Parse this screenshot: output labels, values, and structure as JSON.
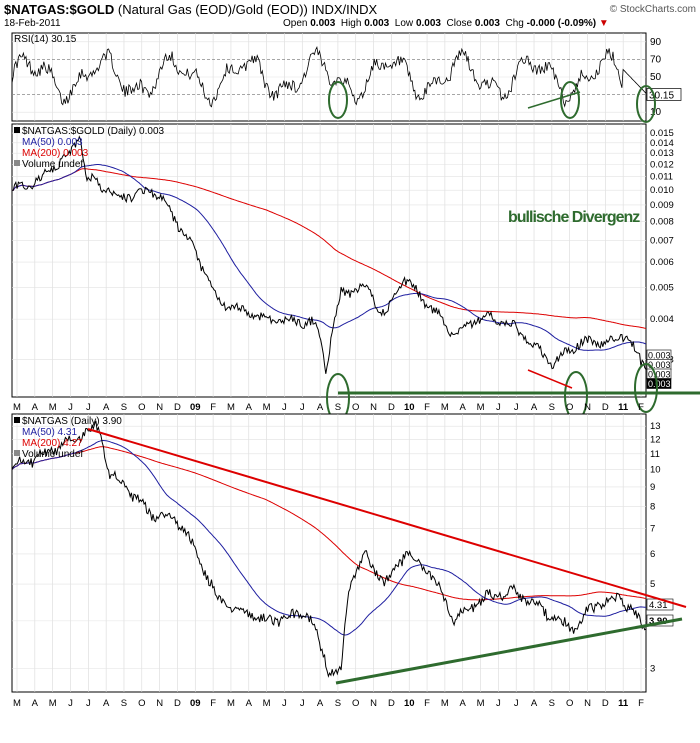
{
  "header": {
    "symbol": "$NATGAS:$GOLD",
    "description": "(Natural Gas (EOD)/Gold (EOD))",
    "exchange": "INDX/INDX",
    "date": "18-Feb-2011",
    "brand": "© StockCharts.com",
    "open_label": "Open",
    "open": "0.003",
    "high_label": "High",
    "high": "0.003",
    "low_label": "Low",
    "low": "0.003",
    "close_label": "Close",
    "close": "0.003",
    "chg_label": "Chg",
    "chg": "-0.000 (-0.09%)",
    "chg_arrow": "▼"
  },
  "annotation_text": "bullische Divergenz",
  "chart_data": [
    {
      "type": "line",
      "panel": "rsi",
      "legend": "RSI(14) 30.15",
      "last_value": "30.15",
      "ylim": [
        0,
        100
      ],
      "y_ticks": [
        "90",
        "70",
        "50",
        "30",
        "10"
      ],
      "reference_lines": [
        70,
        30
      ],
      "colors": {
        "rsi": "#000000",
        "reference": "#888888",
        "annotation": "#2e6b2e"
      }
    },
    {
      "type": "line",
      "panel": "ratio",
      "scale": "log",
      "legend": {
        "main": "$NATGAS:$GOLD (Daily) 0.003",
        "ma50": "MA(50) 0.003",
        "ma200": "MA(200) 0.003",
        "volume": "Volume undef"
      },
      "ylim": [
        0.0023,
        0.016
      ],
      "y_ticks": [
        "0.015",
        "0.014",
        "0.013",
        "0.012",
        "0.011",
        "0.010",
        "0.009",
        "0.008",
        "0.007",
        "0.006",
        "0.005",
        "0.004",
        "0.003"
      ],
      "tags": [
        "0.003",
        "0.003",
        "0.003",
        "0.003"
      ],
      "x_labels": [
        "M",
        "A",
        "M",
        "J",
        "J",
        "A",
        "S",
        "O",
        "N",
        "D",
        "09",
        "F",
        "M",
        "A",
        "M",
        "J",
        "J",
        "A",
        "S",
        "O",
        "N",
        "D",
        "10",
        "F",
        "M",
        "A",
        "M",
        "J",
        "J",
        "A",
        "S",
        "O",
        "N",
        "D",
        "11",
        "F"
      ],
      "colors": {
        "price": "#000000",
        "ma50": "#1f1fa0",
        "ma200": "#dd0000",
        "support": "#2e6b2e"
      }
    },
    {
      "type": "line",
      "panel": "natgas",
      "scale": "log",
      "legend": {
        "main": "$NATGAS (Daily) 3.90",
        "ma50": "MA(50) 4.31",
        "ma200": "MA(200) 4.27",
        "volume": "Volume undef"
      },
      "ylim": [
        2.6,
        14
      ],
      "y_ticks": [
        "13",
        "12",
        "11",
        "10",
        "9",
        "8",
        "7",
        "6",
        "5",
        "4",
        "3"
      ],
      "tags": [
        "4.31",
        "3.90"
      ],
      "x_labels": [
        "M",
        "A",
        "M",
        "J",
        "J",
        "A",
        "S",
        "O",
        "N",
        "D",
        "09",
        "F",
        "M",
        "A",
        "M",
        "J",
        "J",
        "A",
        "S",
        "O",
        "N",
        "D",
        "10",
        "F",
        "M",
        "A",
        "M",
        "J",
        "J",
        "A",
        "S",
        "O",
        "N",
        "D",
        "11",
        "F"
      ],
      "colors": {
        "price": "#000000",
        "ma50": "#1f1fa0",
        "ma200": "#dd0000",
        "trend_down": "#dd0000",
        "trend_up": "#2e6b2e"
      }
    }
  ]
}
